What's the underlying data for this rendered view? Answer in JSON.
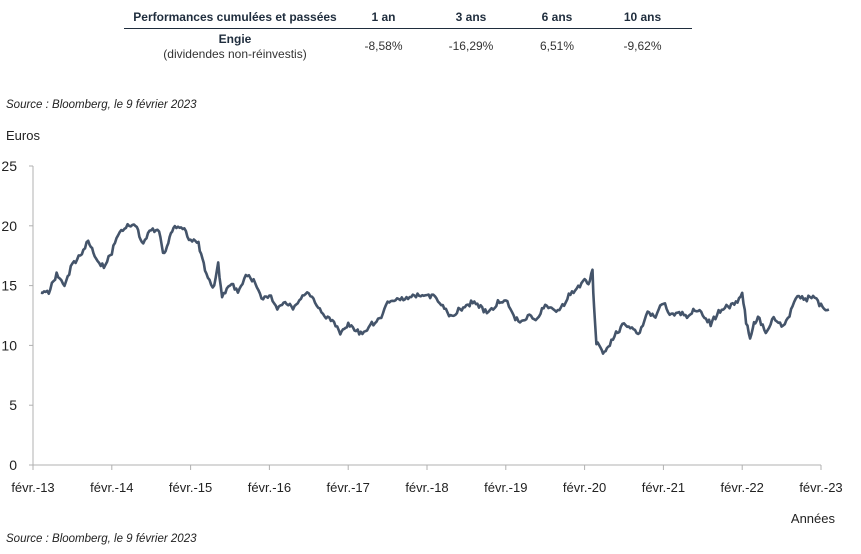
{
  "table": {
    "header": [
      "Performances cumulées et passées",
      "1 an",
      "3 ans",
      "6 ans",
      "10 ans"
    ],
    "row_title": "Engie",
    "row_subtitle": "(dividendes non-réinvestis)",
    "values": [
      "-8,58%",
      "-16,29%",
      "6,51%",
      "-9,62%"
    ]
  },
  "source_top": "Source : Bloomberg, le 9 février 2023",
  "source_bottom": "Source : Bloomberg, le 9 février 2023",
  "chart_data": {
    "type": "line",
    "title": "",
    "ylabel": "Euros",
    "xlabel": "Années",
    "ylim": [
      0,
      25
    ],
    "yticks": [
      "0",
      "5",
      "10",
      "15",
      "20",
      "25"
    ],
    "xticks": [
      "févr.-13",
      "févr.-14",
      "févr.-15",
      "févr.-16",
      "févr.-17",
      "févr.-18",
      "févr.-19",
      "févr.-20",
      "févr.-21",
      "févr.-22",
      "févr.-23"
    ],
    "grid": false,
    "color": "#44546a",
    "series": [
      {
        "x": [
          2013.1,
          2013.2,
          2013.3,
          2013.4,
          2013.5,
          2013.6,
          2013.7,
          2013.75,
          2013.8,
          2013.9,
          2014.0,
          2014.1,
          2014.2,
          2014.3,
          2014.35,
          2014.4,
          2014.5,
          2014.6,
          2014.65,
          2014.7,
          2014.75,
          2014.8,
          2014.9,
          2015.0,
          2015.1,
          2015.15,
          2015.2,
          2015.3,
          2015.35,
          2015.4,
          2015.5,
          2015.6,
          2015.7,
          2015.8,
          2015.9,
          2016.0,
          2016.1,
          2016.2,
          2016.3,
          2016.4,
          2016.5,
          2016.6,
          2016.7,
          2016.8,
          2016.9,
          2016.95,
          2017.0,
          2017.1,
          2017.2,
          2017.3,
          2017.4,
          2017.5,
          2017.6,
          2017.7,
          2017.8,
          2017.9,
          2018.0,
          2018.1,
          2018.2,
          2018.3,
          2018.4,
          2018.5,
          2018.6,
          2018.7,
          2018.8,
          2018.9,
          2019.0,
          2019.1,
          2019.2,
          2019.3,
          2019.4,
          2019.5,
          2019.6,
          2019.7,
          2019.8,
          2019.9,
          2020.0,
          2020.05,
          2020.1,
          2020.12,
          2020.15,
          2020.2,
          2020.25,
          2020.3,
          2020.4,
          2020.5,
          2020.6,
          2020.7,
          2020.8,
          2020.9,
          2021.0,
          2021.1,
          2021.2,
          2021.3,
          2021.4,
          2021.5,
          2021.6,
          2021.7,
          2021.8,
          2021.9,
          2022.0,
          2022.05,
          2022.1,
          2022.15,
          2022.2,
          2022.3,
          2022.4,
          2022.5,
          2022.6,
          2022.7,
          2022.8,
          2022.9,
          2023.0,
          2023.1
        ],
        "y": [
          14.2,
          14.5,
          15.9,
          15.0,
          16.8,
          17.5,
          18.8,
          18.0,
          17.2,
          16.5,
          17.8,
          19.6,
          20.0,
          20.2,
          19.2,
          18.5,
          19.8,
          19.5,
          17.8,
          18.2,
          19.5,
          20.0,
          19.8,
          18.8,
          18.5,
          17.2,
          16.0,
          14.8,
          16.8,
          14.0,
          15.2,
          14.5,
          15.8,
          15.5,
          13.8,
          14.2,
          13.2,
          13.8,
          13.0,
          14.0,
          14.4,
          13.5,
          12.4,
          12.0,
          11.0,
          11.5,
          11.8,
          11.2,
          11.0,
          11.8,
          12.2,
          13.5,
          13.9,
          13.8,
          14.0,
          14.3,
          14.2,
          14.0,
          13.3,
          12.4,
          13.0,
          13.2,
          13.8,
          13.0,
          12.8,
          13.6,
          13.8,
          12.4,
          12.0,
          12.5,
          12.2,
          13.4,
          12.9,
          13.0,
          14.2,
          14.8,
          15.4,
          15.2,
          16.2,
          13.0,
          10.2,
          9.8,
          9.3,
          9.8,
          11.0,
          11.8,
          11.5,
          11.0,
          12.8,
          12.5,
          13.6,
          12.5,
          12.8,
          12.4,
          13.0,
          12.6,
          11.8,
          12.8,
          13.2,
          13.4,
          14.3,
          12.0,
          10.4,
          11.8,
          12.4,
          11.2,
          12.3,
          11.6,
          12.5,
          14.3,
          13.8,
          14.2,
          13.3,
          13.0
        ]
      }
    ]
  }
}
